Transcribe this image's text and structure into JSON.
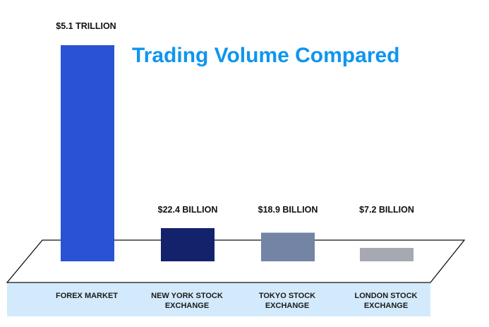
{
  "chart_data": {
    "type": "bar",
    "title": "Trading Volume Compared",
    "xlabel": "",
    "ylabel": "",
    "unit": "USD",
    "categories": [
      [
        "FOREX MARKET"
      ],
      [
        "NEW YORK STOCK",
        "EXCHANGE"
      ],
      [
        "TOKYO STOCK",
        "EXCHANGE"
      ],
      [
        "LONDON STOCK",
        "EXCHANGE"
      ]
    ],
    "values": [
      5100000000000,
      22400000000,
      18900000000,
      7200000000
    ],
    "value_labels": [
      "$5.1 TRILLION",
      "$22.4 BILLION",
      "$18.9 BILLION",
      "$7.2 BILLION"
    ],
    "bar_colors": [
      "#2a52d4",
      "#14226b",
      "#7384a5",
      "#a6a8b2"
    ],
    "grid": false,
    "legend": "none"
  },
  "colors": {
    "title": "#0f95f0",
    "category_band": "#d2eafb",
    "floor_stroke": "#111111"
  }
}
